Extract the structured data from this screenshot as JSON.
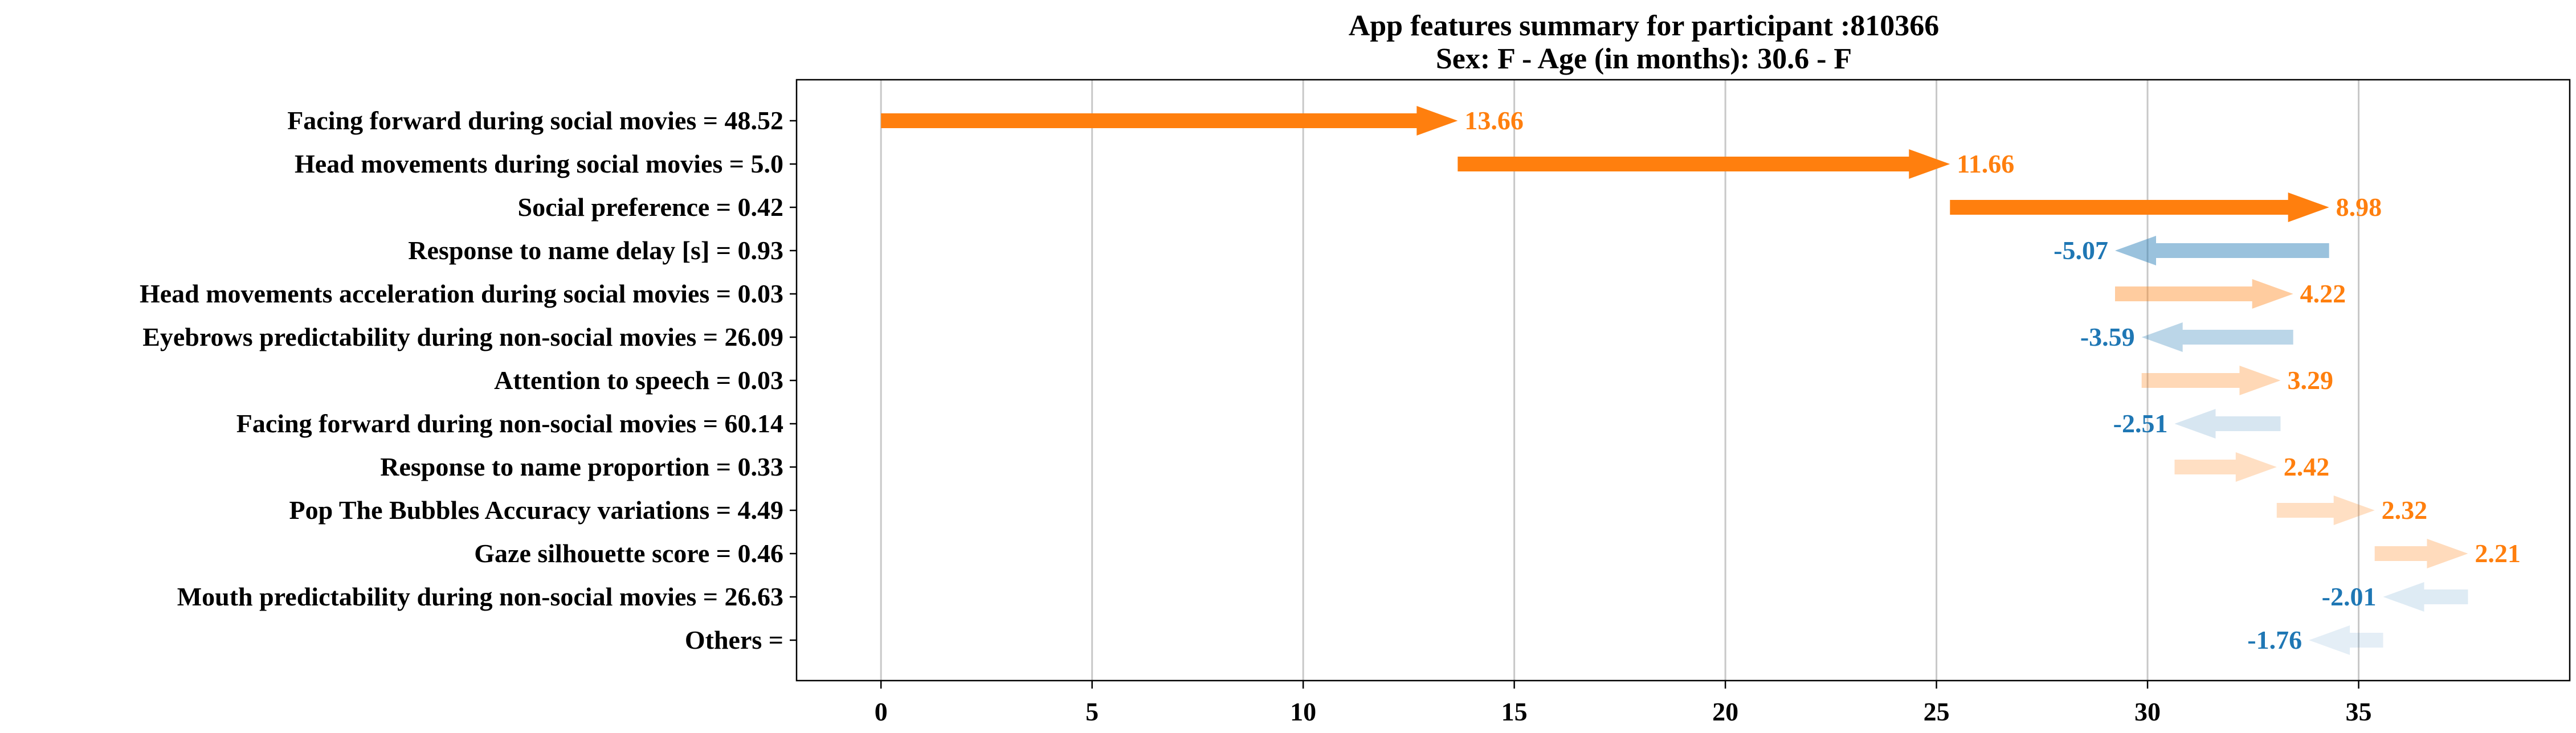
{
  "chart_data": {
    "type": "waterfall-arrows",
    "title": "App features summary for participant :810366",
    "subtitle": "Sex: F - Age (in months): 30.6 - F",
    "xlabel": "",
    "ylabel": "",
    "xlim": [
      -2,
      40
    ],
    "xticks": [
      0,
      5,
      10,
      15,
      20,
      25,
      30,
      35
    ],
    "grid": "vertical",
    "colors": {
      "positive": "#ff7f0e",
      "negative": "#1f77b4"
    },
    "features": [
      {
        "label": "Facing forward during social movies = 48.52",
        "start": 0.0,
        "value": 13.66,
        "value_label": "13.66",
        "opacity": 1.0
      },
      {
        "label": "Head movements during social movies = 5.0",
        "start": 13.66,
        "value": 11.66,
        "value_label": "11.66",
        "opacity": 1.0
      },
      {
        "label": "Social preference = 0.42",
        "start": 25.32,
        "value": 8.98,
        "value_label": "8.98",
        "opacity": 1.0
      },
      {
        "label": "Response to name delay [s] = 0.93",
        "start": 34.3,
        "value": -5.07,
        "value_label": "-5.07",
        "opacity": 0.45
      },
      {
        "label": "Head movements acceleration during social movies = 0.03",
        "start": 29.23,
        "value": 4.22,
        "value_label": "4.22",
        "opacity": 0.4
      },
      {
        "label": "Eyebrows predictability during non-social movies = 26.09",
        "start": 33.45,
        "value": -3.59,
        "value_label": "-3.59",
        "opacity": 0.3
      },
      {
        "label": "Attention to speech = 0.03",
        "start": 29.86,
        "value": 3.29,
        "value_label": "3.29",
        "opacity": 0.3
      },
      {
        "label": "Facing forward during non-social movies = 60.14",
        "start": 33.15,
        "value": -2.51,
        "value_label": "-2.51",
        "opacity": 0.18
      },
      {
        "label": "Response to name proportion = 0.33",
        "start": 30.64,
        "value": 2.42,
        "value_label": "2.42",
        "opacity": 0.25
      },
      {
        "label": "Pop The Bubbles Accuracy variations = 4.49",
        "start": 33.06,
        "value": 2.32,
        "value_label": "2.32",
        "opacity": 0.25
      },
      {
        "label": "Gaze silhouette score = 0.46",
        "start": 35.38,
        "value": 2.21,
        "value_label": "2.21",
        "opacity": 0.28
      },
      {
        "label": "Mouth predictability during non-social movies = 26.63",
        "start": 37.59,
        "value": -2.01,
        "value_label": "-2.01",
        "opacity": 0.15
      },
      {
        "label": "Others = ",
        "start": 35.58,
        "value": -1.76,
        "value_label": "-1.76",
        "opacity": 0.12
      }
    ]
  }
}
